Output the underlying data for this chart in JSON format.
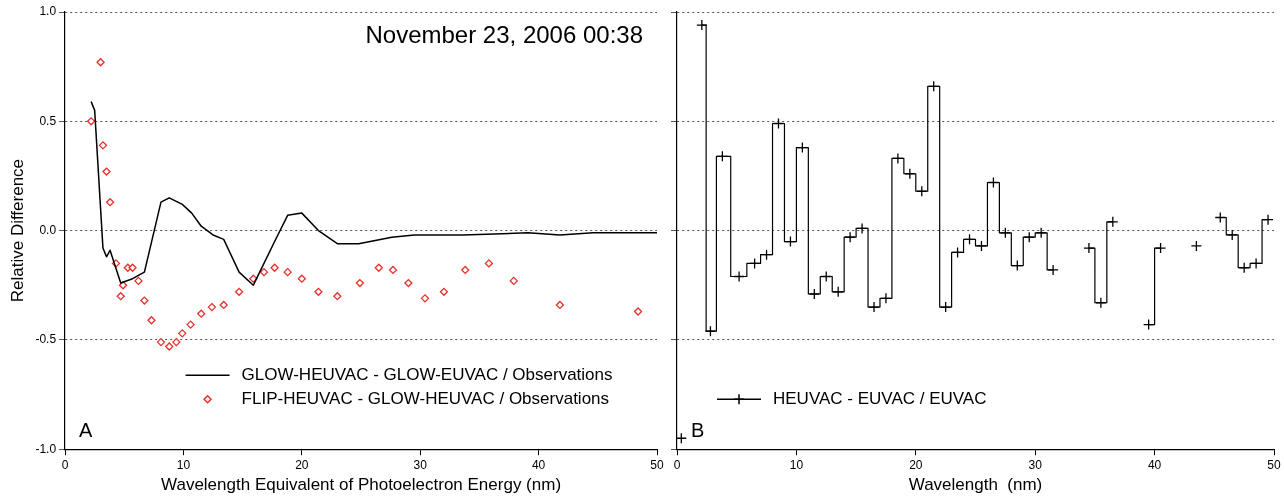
{
  "chart_data": [
    {
      "type": "scatter",
      "xlabel": "Wavelength Equivalent of Photoelectron Energy (nm)",
      "ylabel": "Relative Difference",
      "xlim": [
        0,
        50
      ],
      "xticks": [
        0,
        10,
        20,
        30,
        40,
        50
      ],
      "ylim": [
        -1,
        1
      ],
      "yticks": [
        {
          "value": -1,
          "label": "-1.0"
        },
        {
          "value": -0.5,
          "label": "-0.5"
        },
        {
          "value": 0,
          "label": "0.0"
        },
        {
          "value": 0.5,
          "label": "0.5"
        },
        {
          "value": 1,
          "label": "1.0"
        }
      ],
      "grid": "y",
      "legend": "bottom",
      "annotations": [
        "November 23, 2006 00:38",
        "A"
      ],
      "series": [
        {
          "name": "GLOW-HEUVAC - GLOW-EUVAC / Observations",
          "type": "line",
          "color": "#000000",
          "marker": "none",
          "x": [
            2.2,
            2.5,
            3.2,
            3.5,
            3.8,
            4.7,
            5.7,
            6.7,
            8.1,
            8.8,
            9.9,
            10.7,
            11.5,
            12.5,
            13.4,
            14.7,
            15.9,
            17.7,
            18.8,
            20.0,
            21.4,
            23.0,
            24.8,
            27.6,
            29.5,
            33.6,
            39.1,
            41.8,
            44.6,
            50
          ],
          "values": [
            0.59,
            0.55,
            -0.08,
            -0.12,
            -0.09,
            -0.24,
            -0.22,
            -0.19,
            0.13,
            0.15,
            0.12,
            0.08,
            0.02,
            -0.02,
            -0.04,
            -0.19,
            -0.25,
            -0.05,
            0.07,
            0.08,
            0.0,
            -0.06,
            -0.06,
            -0.03,
            -0.02,
            -0.02,
            -0.01,
            -0.02,
            -0.01,
            -0.01
          ]
        },
        {
          "name": "FLIP-HEUVAC - GLOW-HEUVAC / Observations",
          "type": "scatter",
          "color": "#e8302a",
          "marker": "diamond",
          "x": [
            2.2,
            3.0,
            3.2,
            3.5,
            3.8,
            4.3,
            4.7,
            4.9,
            5.3,
            5.7,
            6.2,
            6.7,
            7.3,
            8.1,
            8.8,
            9.4,
            9.9,
            10.6,
            11.5,
            12.4,
            13.4,
            14.7,
            15.9,
            16.8,
            17.7,
            18.8,
            20.0,
            21.4,
            23.0,
            24.9,
            26.5,
            27.7,
            29.0,
            30.4,
            32.0,
            33.8,
            35.8,
            37.9,
            41.8,
            48.4
          ],
          "values": [
            0.5,
            0.77,
            0.39,
            0.27,
            0.13,
            -0.15,
            -0.3,
            -0.25,
            -0.17,
            -0.17,
            -0.23,
            -0.32,
            -0.41,
            -0.51,
            -0.53,
            -0.51,
            -0.47,
            -0.43,
            -0.38,
            -0.35,
            -0.34,
            -0.28,
            -0.22,
            -0.19,
            -0.17,
            -0.19,
            -0.22,
            -0.28,
            -0.3,
            -0.24,
            -0.17,
            -0.18,
            -0.24,
            -0.31,
            -0.28,
            -0.18,
            -0.15,
            -0.23,
            -0.34,
            -0.37
          ]
        }
      ]
    },
    {
      "type": "step",
      "xlabel": "Wavelength  (nm)",
      "xlim": [
        0,
        50
      ],
      "xticks": [
        0,
        10,
        20,
        30,
        40,
        50
      ],
      "ylim": [
        -1,
        1
      ],
      "yticks": [
        -1,
        -0.5,
        0,
        0.5,
        1
      ],
      "tick_labels": "x",
      "grid": "y",
      "legend": "bottom left",
      "annotations": [
        "B"
      ],
      "series": [
        {
          "name": "HEUVAC - EUVAC / EUVAC",
          "color": "#000000",
          "marker": "cross",
          "x": [
            0.36,
            1.35,
            2.08,
            2.8,
            3.8,
            5.2,
            6.5,
            7.5,
            8.5,
            9.5,
            10.5,
            11.5,
            12.5,
            13.5,
            14.5,
            15.5,
            16.5,
            17.5,
            18.5,
            19.5,
            20.5,
            21.5,
            22.5,
            23.5,
            24.5,
            25.5,
            26.5,
            27.5,
            28.5,
            29.5,
            30.5,
            31.5,
            32.5,
            33.5,
            34.5,
            35.5,
            36.5,
            37.5,
            38.5,
            39.5,
            40.5,
            41.5,
            42.5,
            43.5,
            44.5,
            45.5,
            46.5,
            47.5,
            48.5,
            49.5
          ],
          "values": [
            -0.95,
            null,
            0.94,
            -0.46,
            0.34,
            -0.21,
            -0.15,
            -0.11,
            0.49,
            -0.05,
            0.38,
            -0.29,
            -0.21,
            -0.28,
            -0.03,
            0.01,
            -0.35,
            -0.31,
            0.33,
            0.26,
            0.18,
            0.66,
            -0.35,
            -0.1,
            -0.04,
            -0.07,
            0.22,
            -0.01,
            -0.16,
            -0.03,
            -0.01,
            -0.18,
            null,
            null,
            -0.08,
            -0.33,
            0.04,
            null,
            null,
            -0.43,
            -0.08,
            null,
            null,
            -0.07,
            null,
            0.06,
            -0.02,
            -0.17,
            -0.15,
            0.05
          ]
        }
      ]
    }
  ]
}
